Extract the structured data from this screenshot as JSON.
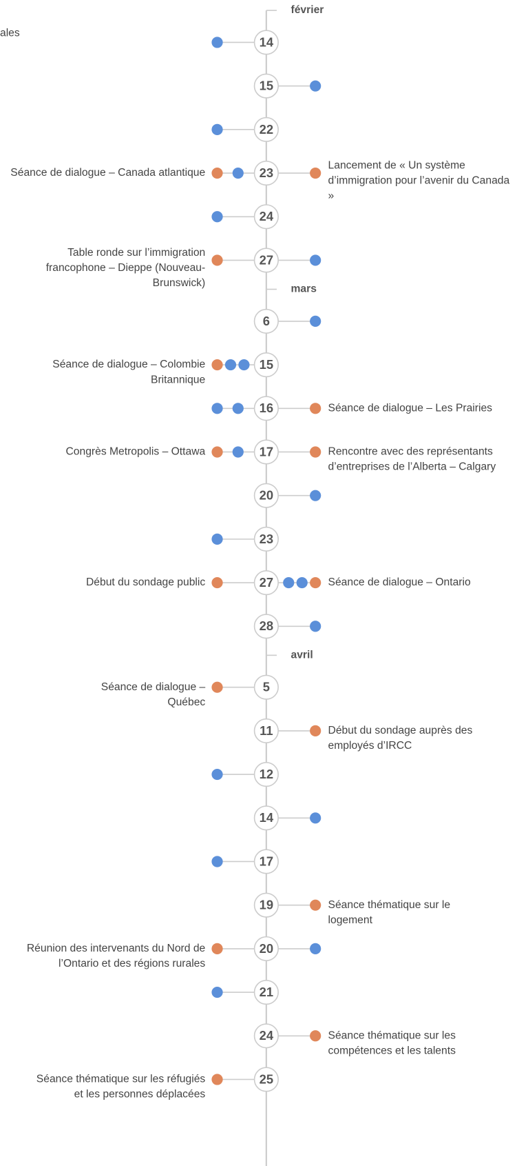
{
  "fragment": "ales",
  "colors": {
    "blue": "#5b8fd9",
    "orange": "#e0875a"
  },
  "months": [
    {
      "label": "février",
      "days": [
        {
          "day": "14",
          "left": {
            "dots": [
              "blue"
            ]
          }
        },
        {
          "day": "15",
          "right": {
            "dots": [
              "blue"
            ]
          }
        },
        {
          "day": "22",
          "left": {
            "dots": [
              "blue"
            ]
          }
        },
        {
          "day": "23",
          "left": {
            "dots": [
              "orange",
              "blue"
            ],
            "lines": [
              "Séance de dialogue – Canada atlantique"
            ]
          },
          "right": {
            "dots": [
              "orange"
            ],
            "lines": [
              "Lancement de « Un système",
              "d’immigration pour l’avenir du Canada",
              "»"
            ]
          }
        },
        {
          "day": "24",
          "left": {
            "dots": [
              "blue"
            ]
          }
        },
        {
          "day": "27",
          "left": {
            "dots": [
              "orange"
            ],
            "lines": [
              "Table ronde sur l’immigration",
              "francophone – Dieppe (Nouveau-",
              "Brunswick)"
            ]
          },
          "right": {
            "dots": [
              "blue"
            ]
          }
        }
      ]
    },
    {
      "label": "mars",
      "days": [
        {
          "day": "6",
          "right": {
            "dots": [
              "blue"
            ]
          }
        },
        {
          "day": "15",
          "left": {
            "dots": [
              "orange",
              "blue",
              "blue"
            ],
            "lines": [
              "Séance de dialogue – Colombie",
              "Britannique"
            ]
          }
        },
        {
          "day": "16",
          "left": {
            "dots": [
              "blue",
              "blue"
            ]
          },
          "right": {
            "dots": [
              "orange"
            ],
            "lines": [
              "Séance de dialogue – Les Prairies"
            ]
          }
        },
        {
          "day": "17",
          "left": {
            "dots": [
              "orange",
              "blue"
            ],
            "lines": [
              "Congrès Metropolis – Ottawa"
            ]
          },
          "right": {
            "dots": [
              "orange"
            ],
            "lines": [
              "Rencontre avec des représentants",
              "d’entreprises de l’Alberta – Calgary"
            ]
          }
        },
        {
          "day": "20",
          "right": {
            "dots": [
              "blue"
            ]
          }
        },
        {
          "day": "23",
          "left": {
            "dots": [
              "blue"
            ]
          }
        },
        {
          "day": "27",
          "left": {
            "dots": [
              "orange"
            ],
            "lines": [
              "Début du sondage public"
            ]
          },
          "right": {
            "dots": [
              "blue",
              "blue",
              "orange"
            ],
            "lines": [
              "Séance de dialogue – Ontario"
            ]
          }
        },
        {
          "day": "28",
          "right": {
            "dots": [
              "blue"
            ]
          }
        }
      ]
    },
    {
      "label": "avril",
      "days": [
        {
          "day": "5",
          "left": {
            "dots": [
              "orange"
            ],
            "lines": [
              "Séance de dialogue –",
              "Québec"
            ]
          }
        },
        {
          "day": "11",
          "right": {
            "dots": [
              "orange"
            ],
            "lines": [
              "Début du sondage auprès des",
              "employés d’IRCC"
            ]
          }
        },
        {
          "day": "12",
          "left": {
            "dots": [
              "blue"
            ]
          }
        },
        {
          "day": "14",
          "right": {
            "dots": [
              "blue"
            ]
          }
        },
        {
          "day": "17",
          "left": {
            "dots": [
              "blue"
            ]
          }
        },
        {
          "day": "19",
          "right": {
            "dots": [
              "orange"
            ],
            "lines": [
              "Séance thématique sur le",
              "logement"
            ]
          }
        },
        {
          "day": "20",
          "left": {
            "dots": [
              "orange"
            ],
            "lines": [
              "Réunion des intervenants du Nord de",
              "l’Ontario et des régions rurales"
            ]
          },
          "right": {
            "dots": [
              "blue"
            ]
          }
        },
        {
          "day": "21",
          "left": {
            "dots": [
              "blue"
            ]
          }
        },
        {
          "day": "24",
          "right": {
            "dots": [
              "orange"
            ],
            "lines": [
              "Séance thématique sur les",
              "compétences et les talents"
            ]
          }
        },
        {
          "day": "25",
          "left": {
            "dots": [
              "orange"
            ],
            "lines": [
              "Séance thématique sur les réfugiés",
              "et les personnes déplacées"
            ]
          }
        }
      ]
    }
  ]
}
